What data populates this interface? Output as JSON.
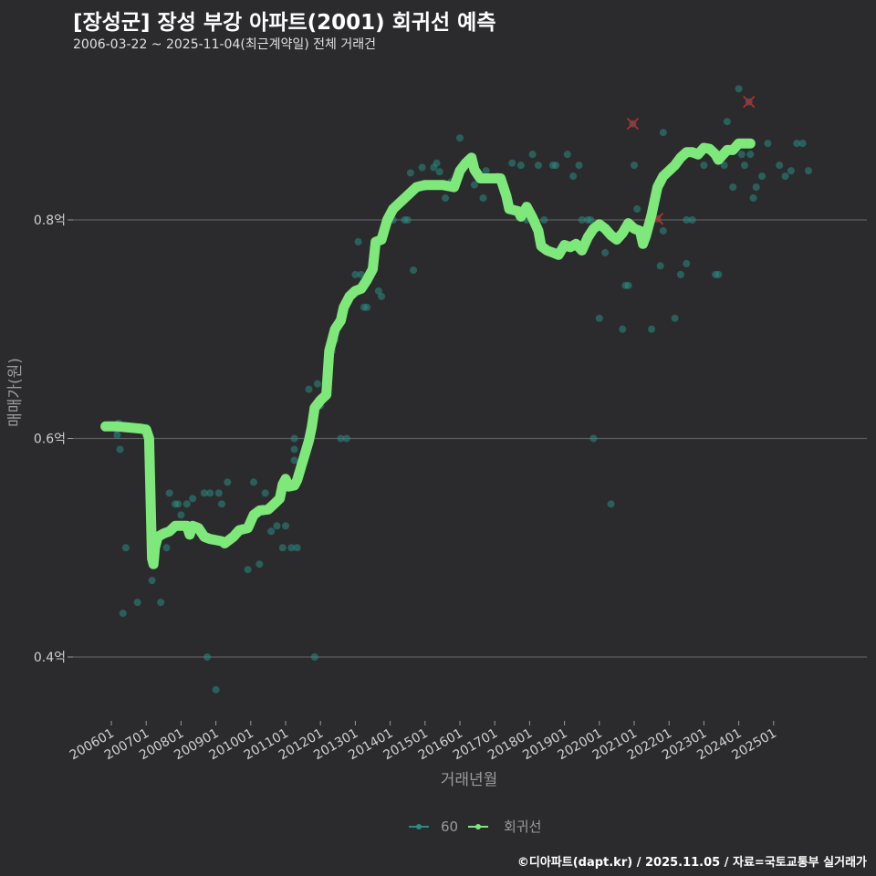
{
  "header": {
    "title": "[장성군] 장성 부강 아파트(2001) 회귀선 예측",
    "subtitle": "2006-03-22 ~ 2025-11-04(최근계약일) 전체 거래건"
  },
  "footer": {
    "credit": "©디아파트(dapt.kr) / 2025.11.05 / 자료=국토교통부 실거래가"
  },
  "colors": {
    "background": "#2b2b2d",
    "grid": "#5e5e60",
    "regression": "#7ee87a",
    "scatter": "#2a8c84",
    "outlier": "#c0282d"
  },
  "chart_data": {
    "type": "line",
    "title": "[장성군] 장성 부강 아파트(2001) 회귀선 예측",
    "subtitle": "2006-03-22 ~ 2025-11-04(최근계약일) 전체 거래건",
    "xlabel": "거래년월",
    "ylabel": "매매가(원)",
    "x_origin": "200601",
    "x_unit": "month_index_from_200601",
    "x_ticks": [
      "200601",
      "200701",
      "200801",
      "200901",
      "201001",
      "201101",
      "201201",
      "201301",
      "201401",
      "201501",
      "201601",
      "201701",
      "201801",
      "201901",
      "202001",
      "202101",
      "202201",
      "202301",
      "202401",
      "202501"
    ],
    "y_ticks": [
      0.4,
      0.6,
      0.8
    ],
    "y_tick_labels": [
      "0.4억",
      "0.6억",
      "0.8억"
    ],
    "ylim": [
      0.345,
      0.93
    ],
    "grid": true,
    "legend": {
      "position": "bottom",
      "entries": [
        "60",
        "회귀선"
      ]
    },
    "series": [
      {
        "name": "회귀선",
        "type": "line",
        "points": [
          [
            -2,
            0.611
          ],
          [
            2,
            0.611
          ],
          [
            6,
            0.61
          ],
          [
            10,
            0.609
          ],
          [
            12,
            0.608
          ],
          [
            13,
            0.6
          ],
          [
            14,
            0.49
          ],
          [
            14.5,
            0.485
          ],
          [
            15,
            0.5
          ],
          [
            16,
            0.51
          ],
          [
            18,
            0.513
          ],
          [
            20,
            0.515
          ],
          [
            22,
            0.52
          ],
          [
            24,
            0.52
          ],
          [
            26,
            0.52
          ],
          [
            27,
            0.512
          ],
          [
            28,
            0.52
          ],
          [
            30,
            0.518
          ],
          [
            32,
            0.51
          ],
          [
            34,
            0.508
          ],
          [
            36,
            0.507
          ],
          [
            38,
            0.506
          ],
          [
            39,
            0.504
          ],
          [
            40,
            0.506
          ],
          [
            42,
            0.51
          ],
          [
            44,
            0.516
          ],
          [
            47,
            0.518
          ],
          [
            49,
            0.53
          ],
          [
            51,
            0.534
          ],
          [
            54,
            0.535
          ],
          [
            56,
            0.54
          ],
          [
            58,
            0.545
          ],
          [
            59,
            0.558
          ],
          [
            60,
            0.563
          ],
          [
            61,
            0.556
          ],
          [
            63,
            0.557
          ],
          [
            64,
            0.562
          ],
          [
            66,
            0.58
          ],
          [
            68,
            0.598
          ],
          [
            69,
            0.61
          ],
          [
            70,
            0.628
          ],
          [
            72,
            0.635
          ],
          [
            74,
            0.64
          ],
          [
            75,
            0.68
          ],
          [
            77,
            0.7
          ],
          [
            79,
            0.708
          ],
          [
            80,
            0.72
          ],
          [
            82,
            0.73
          ],
          [
            84,
            0.735
          ],
          [
            86,
            0.737
          ],
          [
            88,
            0.745
          ],
          [
            90,
            0.755
          ],
          [
            91,
            0.78
          ],
          [
            93,
            0.782
          ],
          [
            95,
            0.8
          ],
          [
            97,
            0.81
          ],
          [
            99,
            0.815
          ],
          [
            101,
            0.82
          ],
          [
            103,
            0.825
          ],
          [
            105,
            0.83
          ],
          [
            108,
            0.832
          ],
          [
            110,
            0.832
          ],
          [
            114,
            0.832
          ],
          [
            118,
            0.83
          ],
          [
            120,
            0.845
          ],
          [
            122,
            0.852
          ],
          [
            124,
            0.857
          ],
          [
            125,
            0.846
          ],
          [
            127,
            0.838
          ],
          [
            131,
            0.838
          ],
          [
            134,
            0.838
          ],
          [
            136,
            0.822
          ],
          [
            137,
            0.81
          ],
          [
            140,
            0.808
          ],
          [
            141,
            0.803
          ],
          [
            143,
            0.812
          ],
          [
            145,
            0.802
          ],
          [
            147,
            0.79
          ],
          [
            148,
            0.776
          ],
          [
            150,
            0.772
          ],
          [
            152,
            0.77
          ],
          [
            154,
            0.768
          ],
          [
            156,
            0.777
          ],
          [
            158,
            0.775
          ],
          [
            160,
            0.778
          ],
          [
            162,
            0.772
          ],
          [
            164,
            0.784
          ],
          [
            166,
            0.792
          ],
          [
            168,
            0.796
          ],
          [
            170,
            0.792
          ],
          [
            172,
            0.786
          ],
          [
            174,
            0.782
          ],
          [
            176,
            0.788
          ],
          [
            178,
            0.797
          ],
          [
            180,
            0.792
          ],
          [
            182,
            0.79
          ],
          [
            183,
            0.778
          ],
          [
            184,
            0.785
          ],
          [
            186,
            0.805
          ],
          [
            188,
            0.83
          ],
          [
            190,
            0.84
          ],
          [
            192,
            0.845
          ],
          [
            194,
            0.85
          ],
          [
            196,
            0.857
          ],
          [
            198,
            0.862
          ],
          [
            200,
            0.862
          ],
          [
            202,
            0.86
          ],
          [
            204,
            0.866
          ],
          [
            206,
            0.865
          ],
          [
            208,
            0.86
          ],
          [
            209,
            0.855
          ],
          [
            210,
            0.858
          ],
          [
            212,
            0.864
          ],
          [
            214,
            0.864
          ],
          [
            216,
            0.87
          ],
          [
            218,
            0.87
          ],
          [
            220,
            0.87
          ]
        ]
      },
      {
        "name": "60",
        "type": "scatter",
        "points": [
          [
            2,
            0.608
          ],
          [
            2,
            0.603
          ],
          [
            2.5,
            0.614
          ],
          [
            3,
            0.59
          ],
          [
            4,
            0.44
          ],
          [
            5,
            0.5
          ],
          [
            9,
            0.45
          ],
          [
            12,
            0.61
          ],
          [
            14,
            0.47
          ],
          [
            17,
            0.45
          ],
          [
            19,
            0.5
          ],
          [
            20,
            0.55
          ],
          [
            22,
            0.54
          ],
          [
            23,
            0.54
          ],
          [
            24,
            0.53
          ],
          [
            26,
            0.54
          ],
          [
            28,
            0.545
          ],
          [
            32,
            0.55
          ],
          [
            33,
            0.4
          ],
          [
            34,
            0.55
          ],
          [
            36,
            0.37
          ],
          [
            37,
            0.55
          ],
          [
            38,
            0.54
          ],
          [
            40,
            0.56
          ],
          [
            41,
            0.51
          ],
          [
            47,
            0.48
          ],
          [
            48,
            0.52
          ],
          [
            49,
            0.56
          ],
          [
            51,
            0.485
          ],
          [
            53,
            0.55
          ],
          [
            55,
            0.515
          ],
          [
            57,
            0.52
          ],
          [
            59,
            0.5
          ],
          [
            60,
            0.52
          ],
          [
            62,
            0.5
          ],
          [
            63,
            0.58
          ],
          [
            63,
            0.59
          ],
          [
            63,
            0.6
          ],
          [
            64,
            0.5
          ],
          [
            68,
            0.645
          ],
          [
            70,
            0.4
          ],
          [
            71,
            0.65
          ],
          [
            72,
            0.63
          ],
          [
            76,
            0.68
          ],
          [
            77,
            0.69
          ],
          [
            79,
            0.6
          ],
          [
            81,
            0.6
          ],
          [
            84,
            0.75
          ],
          [
            85,
            0.78
          ],
          [
            86,
            0.75
          ],
          [
            87,
            0.72
          ],
          [
            88,
            0.72
          ],
          [
            92,
            0.735
          ],
          [
            93,
            0.73
          ],
          [
            96,
            0.8
          ],
          [
            97,
            0.8
          ],
          [
            101,
            0.8
          ],
          [
            102,
            0.8
          ],
          [
            103,
            0.843
          ],
          [
            104,
            0.754
          ],
          [
            107,
            0.848
          ],
          [
            108,
            0.83
          ],
          [
            111,
            0.848
          ],
          [
            112,
            0.852
          ],
          [
            113,
            0.844
          ],
          [
            115,
            0.82
          ],
          [
            117,
            0.835
          ],
          [
            120,
            0.875
          ],
          [
            125,
            0.832
          ],
          [
            128,
            0.82
          ],
          [
            129,
            0.845
          ],
          [
            133,
            0.84
          ],
          [
            138,
            0.852
          ],
          [
            141,
            0.85
          ],
          [
            143,
            0.8
          ],
          [
            145,
            0.86
          ],
          [
            147,
            0.85
          ],
          [
            149,
            0.8
          ],
          [
            152,
            0.85
          ],
          [
            153,
            0.85
          ],
          [
            157,
            0.86
          ],
          [
            159,
            0.84
          ],
          [
            161,
            0.85
          ],
          [
            162,
            0.8
          ],
          [
            164,
            0.8
          ],
          [
            165,
            0.8
          ],
          [
            166,
            0.79
          ],
          [
            166,
            0.6
          ],
          [
            168,
            0.71
          ],
          [
            170,
            0.77
          ],
          [
            172,
            0.54
          ],
          [
            176,
            0.7
          ],
          [
            177,
            0.74
          ],
          [
            178,
            0.74
          ],
          [
            180,
            0.85
          ],
          [
            181,
            0.81
          ],
          [
            184,
            0.79
          ],
          [
            186,
            0.7
          ],
          [
            189,
            0.758
          ],
          [
            190,
            0.79
          ],
          [
            190,
            0.88
          ],
          [
            194,
            0.71
          ],
          [
            196,
            0.75
          ],
          [
            198,
            0.76
          ],
          [
            198,
            0.8
          ],
          [
            200,
            0.8
          ],
          [
            204,
            0.85
          ],
          [
            206,
            0.865
          ],
          [
            208,
            0.75
          ],
          [
            209,
            0.75
          ],
          [
            211,
            0.85
          ],
          [
            212,
            0.89
          ],
          [
            214,
            0.83
          ],
          [
            216,
            0.92
          ],
          [
            217,
            0.86
          ],
          [
            218,
            0.85
          ],
          [
            220,
            0.86
          ],
          [
            221,
            0.82
          ],
          [
            222,
            0.83
          ],
          [
            224,
            0.84
          ],
          [
            226,
            0.87
          ],
          [
            230,
            0.85
          ],
          [
            232,
            0.84
          ],
          [
            234,
            0.845
          ],
          [
            236,
            0.87
          ],
          [
            238,
            0.87
          ],
          [
            240,
            0.845
          ]
        ]
      },
      {
        "name": "outliers",
        "type": "scatter-x",
        "points": [
          [
            179.5,
            0.888
          ],
          [
            188,
            0.801
          ],
          [
            219.5,
            0.908
          ]
        ]
      }
    ]
  },
  "axes": {
    "x_title": "거래년월",
    "y_title": "매매가(원)"
  },
  "legend": {
    "items": [
      {
        "label": "60",
        "color": "#2a8c84"
      },
      {
        "label": "회귀선",
        "color": "#7ee87a"
      }
    ]
  }
}
